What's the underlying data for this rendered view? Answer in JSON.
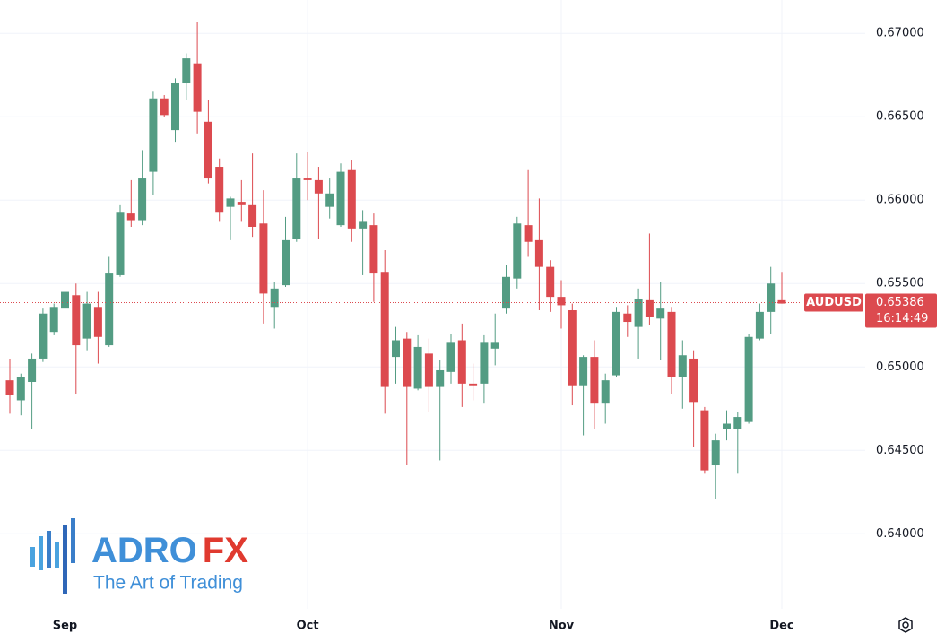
{
  "chart_data": {
    "type": "candlestick",
    "categories": [
      null,
      null,
      null,
      null,
      null,
      "Sep",
      null,
      null,
      null,
      null,
      null,
      null,
      null,
      null,
      null,
      null,
      null,
      null,
      null,
      null,
      null,
      null,
      null,
      null,
      null,
      null,
      null,
      "Oct",
      null,
      null,
      null,
      null,
      null,
      null,
      null,
      null,
      null,
      null,
      null,
      null,
      null,
      null,
      null,
      null,
      null,
      null,
      null,
      null,
      null,
      null,
      "Nov",
      null,
      null,
      null,
      null,
      null,
      null,
      null,
      null,
      null,
      null,
      null,
      null,
      null,
      null,
      null,
      null,
      null,
      null,
      null,
      "Dec"
    ],
    "open": [
      0.6492,
      0.648,
      0.6491,
      0.6505,
      0.6521,
      0.6535,
      0.6543,
      0.6517,
      0.6536,
      0.6513,
      0.6555,
      0.6592,
      0.6588,
      0.6617,
      0.6661,
      0.6642,
      0.667,
      0.6682,
      0.6647,
      0.662,
      0.6596,
      0.6599,
      0.6597,
      0.6586,
      0.6536,
      0.6549,
      0.6577,
      0.6613,
      0.6612,
      0.6596,
      0.6585,
      0.6618,
      0.6583,
      0.6585,
      0.6557,
      0.6506,
      0.6517,
      0.6487,
      0.6508,
      0.6488,
      0.6497,
      0.6516,
      0.649,
      0.649,
      0.6511,
      0.6535,
      0.6553,
      0.6585,
      0.6576,
      0.656,
      0.6542,
      0.6534,
      0.6489,
      0.6506,
      0.6478,
      0.6495,
      0.6532,
      0.6524,
      0.654,
      0.6529,
      0.6533,
      0.6494,
      0.6505,
      0.6474,
      0.6441,
      0.6463,
      0.6463,
      0.6467,
      0.6517,
      0.6533,
      0.654
    ],
    "high": [
      0.6505,
      0.6496,
      0.6508,
      0.6535,
      0.6538,
      0.6551,
      0.655,
      0.6545,
      0.6545,
      0.6566,
      0.6597,
      0.6612,
      0.663,
      0.6665,
      0.6663,
      0.6673,
      0.6688,
      0.6707,
      0.666,
      0.6625,
      0.6602,
      0.6612,
      0.6628,
      0.6606,
      0.6551,
      0.659,
      0.6628,
      0.6629,
      0.662,
      0.6613,
      0.6622,
      0.6624,
      0.6594,
      0.6592,
      0.657,
      0.6524,
      0.6521,
      0.6519,
      0.6517,
      0.6504,
      0.652,
      0.6526,
      0.6502,
      0.6519,
      0.6532,
      0.6561,
      0.659,
      0.6618,
      0.6601,
      0.6564,
      0.6552,
      0.6538,
      0.6507,
      0.6516,
      0.6496,
      0.6536,
      0.6537,
      0.6547,
      0.658,
      0.6551,
      0.6536,
      0.6516,
      0.651,
      0.6476,
      0.646,
      0.6474,
      0.6473,
      0.652,
      0.6538,
      0.656,
      0.6557
    ],
    "low": [
      0.6472,
      0.6471,
      0.6463,
      0.6503,
      0.6519,
      0.6526,
      0.6484,
      0.651,
      0.6502,
      0.6512,
      0.6554,
      0.6584,
      0.6585,
      0.6603,
      0.665,
      0.6635,
      0.666,
      0.664,
      0.661,
      0.6587,
      0.6576,
      0.6587,
      0.6578,
      0.6526,
      0.6523,
      0.6548,
      0.6575,
      0.66,
      0.6577,
      0.6589,
      0.6584,
      0.6575,
      0.6555,
      0.6539,
      0.6472,
      0.649,
      0.6441,
      0.6486,
      0.6473,
      0.6444,
      0.649,
      0.6476,
      0.648,
      0.6478,
      0.6501,
      0.6532,
      0.6547,
      0.6566,
      0.6534,
      0.6533,
      0.6523,
      0.6477,
      0.6459,
      0.6463,
      0.6466,
      0.6494,
      0.6518,
      0.6505,
      0.6525,
      0.6504,
      0.6484,
      0.6475,
      0.6452,
      0.6436,
      0.6421,
      0.6456,
      0.6436,
      0.6466,
      0.6516,
      0.652,
      0.6538
    ],
    "close": [
      0.6483,
      0.6494,
      0.6505,
      0.6532,
      0.6536,
      0.6545,
      0.6513,
      0.6538,
      0.6518,
      0.6556,
      0.6593,
      0.6588,
      0.6613,
      0.6661,
      0.6651,
      0.667,
      0.6685,
      0.6653,
      0.6613,
      0.6593,
      0.6601,
      0.6597,
      0.6584,
      0.6544,
      0.6547,
      0.6576,
      0.6613,
      0.6612,
      0.6604,
      0.6604,
      0.6617,
      0.6583,
      0.6587,
      0.6556,
      0.6488,
      0.6516,
      0.6488,
      0.6512,
      0.6488,
      0.6498,
      0.6515,
      0.649,
      0.6489,
      0.6515,
      0.6515,
      0.6554,
      0.6586,
      0.6575,
      0.656,
      0.6542,
      0.6537,
      0.6489,
      0.6506,
      0.6478,
      0.6492,
      0.6533,
      0.6527,
      0.6541,
      0.653,
      0.6535,
      0.6494,
      0.6507,
      0.6479,
      0.6438,
      0.6456,
      0.6466,
      0.647,
      0.6518,
      0.6533,
      0.655,
      0.6538
    ],
    "up_color": "#539c83",
    "down_color": "#dc4a4f",
    "ylim": [
      0.6355,
      0.672
    ],
    "yticks": [
      {
        "value": 0.64,
        "label": "0.64000"
      },
      {
        "value": 0.645,
        "label": "0.64500"
      },
      {
        "value": 0.65,
        "label": "0.65000"
      },
      {
        "value": 0.655,
        "label": "0.65500"
      },
      {
        "value": 0.66,
        "label": "0.66000"
      },
      {
        "value": 0.665,
        "label": "0.66500"
      },
      {
        "value": 0.67,
        "label": "0.67000"
      }
    ],
    "grid": true,
    "price_line": {
      "symbol": "AUDUSD",
      "value": 0.65386,
      "countdown": "16:14:49"
    }
  },
  "logo": {
    "brand_left": "ADRO",
    "brand_right": "FX",
    "tagline": "The Art of Trading"
  }
}
